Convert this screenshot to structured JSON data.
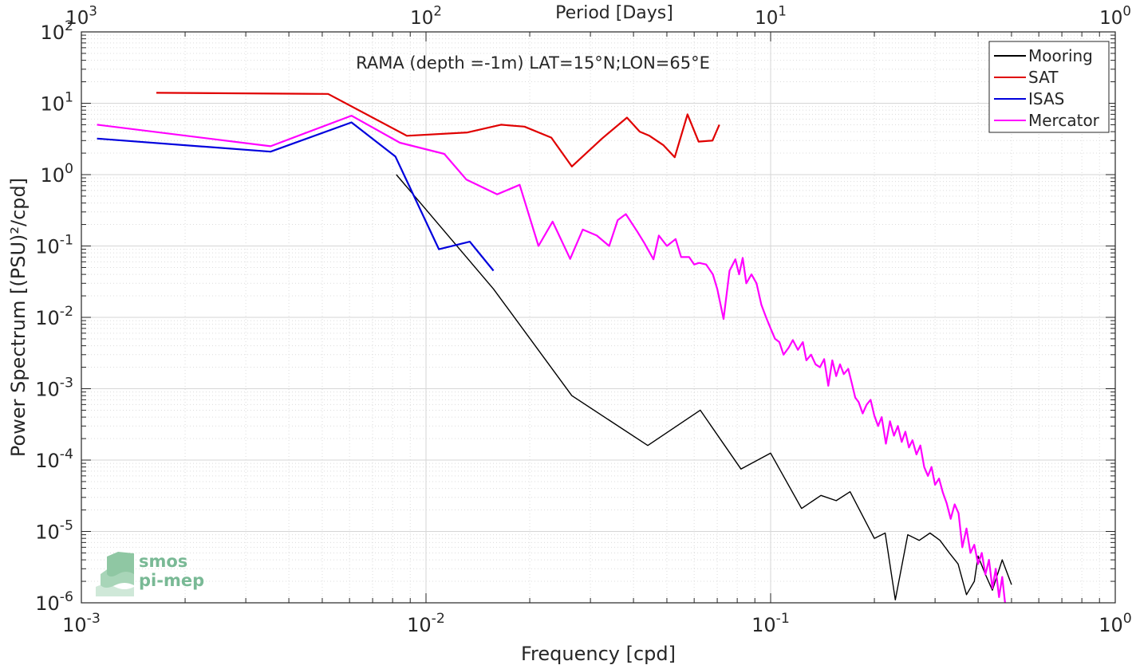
{
  "chart_data": {
    "type": "line",
    "title": "RAMA (depth =-1m) LAT=15°N;LON=65°E",
    "xlabel": "Frequency [cpd]",
    "ylabel": "Power Spectrum [(PSU)²/cpd]",
    "top_xlabel": "Period [Days]",
    "xscale": "log",
    "yscale": "log",
    "xlim": [
      0.001,
      1
    ],
    "ylim": [
      1e-06,
      100
    ],
    "x_ticks": [
      {
        "base": "10",
        "exp": "-3"
      },
      {
        "base": "10",
        "exp": "-2"
      },
      {
        "base": "10",
        "exp": "-1"
      },
      {
        "base": "10",
        "exp": "0"
      }
    ],
    "top_ticks": [
      {
        "base": "10",
        "exp": "3"
      },
      {
        "base": "10",
        "exp": "2"
      },
      {
        "base": "10",
        "exp": "1"
      },
      {
        "base": "10",
        "exp": "0"
      }
    ],
    "y_ticks": [
      {
        "base": "10",
        "exp": "-6"
      },
      {
        "base": "10",
        "exp": "-5"
      },
      {
        "base": "10",
        "exp": "-4"
      },
      {
        "base": "10",
        "exp": "-3"
      },
      {
        "base": "10",
        "exp": "-2"
      },
      {
        "base": "10",
        "exp": "-1"
      },
      {
        "base": "10",
        "exp": "0"
      },
      {
        "base": "10",
        "exp": "1"
      },
      {
        "base": "10",
        "exp": "2"
      }
    ],
    "grid": true,
    "legend_position": "top-right",
    "series": [
      {
        "name": "Mooring",
        "color": "#000000",
        "points": [
          [
            0.0082,
            1.0
          ],
          [
            0.0157,
            0.025
          ],
          [
            0.0265,
            0.0008
          ],
          [
            0.044,
            0.00016
          ],
          [
            0.0625,
            0.0005
          ],
          [
            0.082,
            7.5e-05
          ],
          [
            0.1,
            0.000125
          ],
          [
            0.123,
            2.1e-05
          ],
          [
            0.14,
            3.2e-05
          ],
          [
            0.155,
            2.7e-05
          ],
          [
            0.17,
            3.6e-05
          ],
          [
            0.2,
            8e-06
          ],
          [
            0.215,
            9.5e-06
          ],
          [
            0.23,
            1.1e-06
          ],
          [
            0.25,
            9e-06
          ],
          [
            0.27,
            7.5e-06
          ],
          [
            0.29,
            9.5e-06
          ],
          [
            0.31,
            7.5e-06
          ],
          [
            0.33,
            5e-06
          ],
          [
            0.35,
            3.5e-06
          ],
          [
            0.37,
            1.3e-06
          ],
          [
            0.39,
            2e-06
          ],
          [
            0.4,
            4.5e-06
          ],
          [
            0.42,
            2.5e-06
          ],
          [
            0.44,
            1.5e-06
          ],
          [
            0.47,
            4e-06
          ],
          [
            0.5,
            1.8e-06
          ]
        ]
      },
      {
        "name": "SAT",
        "color": "#e00000",
        "points": [
          [
            0.00165,
            14
          ],
          [
            0.0052,
            13.5
          ],
          [
            0.0088,
            3.5
          ],
          [
            0.0132,
            3.9
          ],
          [
            0.0165,
            5.0
          ],
          [
            0.0193,
            4.7
          ],
          [
            0.0231,
            3.3
          ],
          [
            0.0265,
            1.3
          ],
          [
            0.0324,
            3.2
          ],
          [
            0.0383,
            6.3
          ],
          [
            0.0417,
            4.0
          ],
          [
            0.0445,
            3.5
          ],
          [
            0.0488,
            2.6
          ],
          [
            0.0527,
            1.75
          ],
          [
            0.0574,
            7.0
          ],
          [
            0.0618,
            2.9
          ],
          [
            0.0678,
            3.0
          ],
          [
            0.071,
            5.0
          ]
        ]
      },
      {
        "name": "ISAS",
        "color": "#0000dd",
        "points": [
          [
            0.00111,
            3.2
          ],
          [
            0.00354,
            2.1
          ],
          [
            0.00608,
            5.4
          ],
          [
            0.00815,
            1.8
          ],
          [
            0.0109,
            0.09
          ],
          [
            0.0134,
            0.115
          ],
          [
            0.0157,
            0.045
          ]
        ]
      },
      {
        "name": "Mercator",
        "color": "#ff00ff",
        "points": [
          [
            0.00111,
            5.0
          ],
          [
            0.00354,
            2.5
          ],
          [
            0.00608,
            6.7
          ],
          [
            0.0084,
            2.8
          ],
          [
            0.0113,
            1.95
          ],
          [
            0.0131,
            0.85
          ],
          [
            0.0161,
            0.53
          ],
          [
            0.0187,
            0.72
          ],
          [
            0.0212,
            0.1
          ],
          [
            0.0233,
            0.22
          ],
          [
            0.0262,
            0.066
          ],
          [
            0.0285,
            0.17
          ],
          [
            0.0313,
            0.14
          ],
          [
            0.034,
            0.1
          ],
          [
            0.036,
            0.23
          ],
          [
            0.038,
            0.28
          ],
          [
            0.041,
            0.16
          ],
          [
            0.043,
            0.11
          ],
          [
            0.0457,
            0.065
          ],
          [
            0.0474,
            0.14
          ],
          [
            0.05,
            0.1
          ],
          [
            0.053,
            0.125
          ],
          [
            0.055,
            0.07
          ],
          [
            0.058,
            0.07
          ],
          [
            0.06,
            0.055
          ],
          [
            0.062,
            0.058
          ],
          [
            0.065,
            0.055
          ],
          [
            0.068,
            0.04
          ],
          [
            0.07,
            0.025
          ],
          [
            0.073,
            0.0095
          ],
          [
            0.076,
            0.045
          ],
          [
            0.079,
            0.065
          ],
          [
            0.081,
            0.04
          ],
          [
            0.083,
            0.068
          ],
          [
            0.085,
            0.03
          ],
          [
            0.088,
            0.04
          ],
          [
            0.091,
            0.03
          ],
          [
            0.094,
            0.015
          ],
          [
            0.097,
            0.01
          ],
          [
            0.1,
            0.007
          ],
          [
            0.103,
            0.005
          ],
          [
            0.106,
            0.0045
          ],
          [
            0.109,
            0.003
          ],
          [
            0.113,
            0.0038
          ],
          [
            0.116,
            0.0048
          ],
          [
            0.12,
            0.0035
          ],
          [
            0.124,
            0.0045
          ],
          [
            0.127,
            0.0025
          ],
          [
            0.131,
            0.003
          ],
          [
            0.135,
            0.0022
          ],
          [
            0.139,
            0.002
          ],
          [
            0.143,
            0.0026
          ],
          [
            0.147,
            0.0011
          ],
          [
            0.151,
            0.0025
          ],
          [
            0.155,
            0.0015
          ],
          [
            0.159,
            0.0022
          ],
          [
            0.163,
            0.0016
          ],
          [
            0.168,
            0.0019
          ],
          [
            0.172,
            0.0012
          ],
          [
            0.176,
            0.00075
          ],
          [
            0.18,
            0.00065
          ],
          [
            0.185,
            0.00045
          ],
          [
            0.19,
            0.0006
          ],
          [
            0.195,
            0.0007
          ],
          [
            0.2,
            0.00042
          ],
          [
            0.205,
            0.0003
          ],
          [
            0.21,
            0.0004
          ],
          [
            0.216,
            0.00017
          ],
          [
            0.222,
            0.00035
          ],
          [
            0.228,
            0.00022
          ],
          [
            0.234,
            0.0003
          ],
          [
            0.24,
            0.00018
          ],
          [
            0.246,
            0.00025
          ],
          [
            0.252,
            0.00015
          ],
          [
            0.258,
            0.00019
          ],
          [
            0.265,
            0.00012
          ],
          [
            0.272,
            0.00016
          ],
          [
            0.279,
            8e-05
          ],
          [
            0.286,
            6e-05
          ],
          [
            0.293,
            8e-05
          ],
          [
            0.3,
            4.5e-05
          ],
          [
            0.308,
            5.5e-05
          ],
          [
            0.316,
            3.5e-05
          ],
          [
            0.324,
            2.5e-05
          ],
          [
            0.333,
            1.5e-05
          ],
          [
            0.342,
            2.4e-05
          ],
          [
            0.351,
            1.8e-05
          ],
          [
            0.36,
            6e-06
          ],
          [
            0.37,
            1.1e-05
          ],
          [
            0.38,
            5e-06
          ],
          [
            0.39,
            6.5e-06
          ],
          [
            0.4,
            3.5e-06
          ],
          [
            0.41,
            5e-06
          ],
          [
            0.42,
            2.5e-06
          ],
          [
            0.43,
            4e-06
          ],
          [
            0.44,
            1.6e-06
          ],
          [
            0.45,
            3e-06
          ],
          [
            0.46,
            1.2e-06
          ],
          [
            0.47,
            2.3e-06
          ],
          [
            0.48,
            9e-07
          ]
        ]
      }
    ]
  },
  "logo": {
    "line1": "smos",
    "line2": "pi-mep"
  }
}
